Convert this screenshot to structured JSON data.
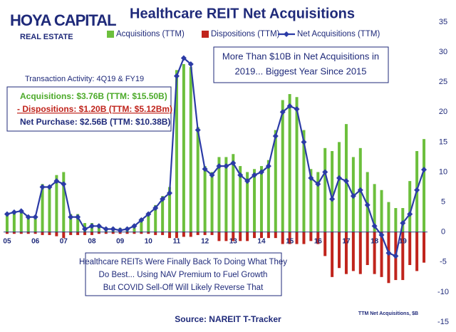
{
  "chart_data": {
    "type": "bar",
    "title": "Healthcare REIT Net Acquisitions",
    "logo": [
      "HOYA CAPITAL",
      "REAL ESTATE"
    ],
    "notes": {
      "top": [
        "More Than $10B in Net Acquisitions in",
        "2019... Biggest Year Since 2015"
      ],
      "activity_title": "Transaction Activity: 4Q19 & FY19",
      "activity": [
        "Acquisitions: $3.76B (TTM: $15.50B)",
        "- Dispositions: $1.20B (TTM: $5.12Bm)",
        "Net Purchase: $2.56B (TTM: $10.38B)"
      ],
      "bottom": [
        "Healthcare REITs Were Finally Back To Doing What They",
        "Do Best... Using NAV Premium to Fuel Growth",
        "But COVID Sell-Off Will Likely Reverse That"
      ]
    },
    "source": "Source: NAREIT T-Tracker",
    "y_label": "TTM Net Acquisitions, $B",
    "y_axis_side": "right",
    "categories": [
      "05",
      null,
      null,
      null,
      "06",
      null,
      null,
      null,
      "07",
      null,
      null,
      null,
      "08",
      null,
      null,
      null,
      "09",
      null,
      null,
      null,
      "10",
      null,
      null,
      null,
      "11",
      null,
      null,
      null,
      "12",
      null,
      null,
      null,
      "13",
      null,
      null,
      null,
      "14",
      null,
      null,
      null,
      "15",
      null,
      null,
      null,
      "16",
      null,
      null,
      null,
      "17",
      null,
      null,
      null,
      "18",
      null,
      null,
      null,
      "19",
      null,
      null,
      null
    ],
    "series": [
      {
        "name": "Acquisitions (TTM)",
        "type": "bar",
        "color": "#6cbf3c",
        "values": [
          3,
          3.5,
          3.7,
          2.7,
          2.7,
          8,
          7.8,
          9.5,
          10,
          3,
          3,
          1.5,
          1.5,
          1.3,
          0.8,
          0.8,
          0.7,
          0.8,
          1.3,
          2.3,
          3.3,
          4.5,
          6,
          7.5,
          27,
          28,
          27.5,
          17.5,
          11,
          10,
          12.5,
          12.5,
          13,
          11,
          10,
          10.5,
          11,
          12,
          17,
          22,
          23,
          22.5,
          17,
          10.5,
          10,
          14,
          13.5,
          15,
          18,
          12.5,
          14,
          10,
          8,
          7,
          5,
          4,
          4,
          8.5,
          13.5,
          15.5
        ]
      },
      {
        "name": "Dispositions (TTM)",
        "type": "bar",
        "color": "#c0241c",
        "values": [
          -0.3,
          -0.3,
          -0.3,
          -0.3,
          -0.3,
          -0.5,
          -0.5,
          -0.7,
          -1,
          -0.5,
          -0.5,
          -0.5,
          -0.5,
          -0.3,
          -0.3,
          -0.3,
          -0.3,
          -0.3,
          -0.3,
          -0.3,
          -0.3,
          -0.5,
          -0.5,
          -1,
          -1,
          -0.8,
          -0.8,
          -0.5,
          -0.5,
          -0.5,
          -1.5,
          -1.5,
          -1.5,
          -1.5,
          -1.5,
          -1,
          -1,
          -1,
          -1,
          -2,
          -2,
          -2,
          -2,
          -1.5,
          -2,
          -4,
          -7.5,
          -6,
          -7,
          -6.5,
          -7,
          -5.5,
          -7,
          -7.5,
          -8.5,
          -8,
          -8,
          -5.5,
          -6.5,
          -5.1
        ]
      },
      {
        "name": "Net Acquisitions (TTM)",
        "type": "line",
        "color": "#2b3ba6",
        "values": [
          3,
          3.3,
          3.5,
          2.5,
          2.5,
          7.5,
          7.5,
          8.5,
          8,
          2.5,
          2.5,
          0.5,
          1,
          1,
          0.5,
          0.5,
          0.3,
          0.5,
          1,
          2,
          3,
          4,
          5.5,
          6.5,
          26,
          29,
          28,
          17,
          10.5,
          9.5,
          11,
          11,
          11.5,
          9.5,
          8.5,
          9.5,
          10,
          11,
          16,
          20,
          21,
          20.5,
          15,
          9,
          8,
          10,
          5.5,
          9,
          8.5,
          6,
          7,
          4.5,
          1,
          -0.5,
          -3.5,
          -4,
          1.5,
          3,
          7,
          10.4
        ]
      }
    ],
    "ylim": [
      -15,
      35
    ],
    "yticks": [
      -15,
      -10,
      -5,
      0,
      5,
      10,
      15,
      20,
      25,
      30,
      35
    ],
    "grid": false
  }
}
